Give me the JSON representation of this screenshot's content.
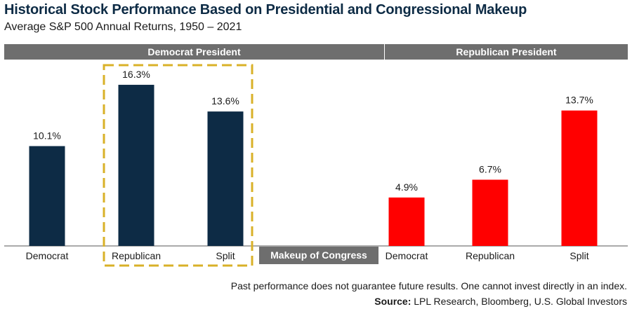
{
  "title": "Historical Stock Performance Based on Presidential and Congressional Makeup",
  "subtitle": "Average S&P 500 Annual Returns, 1950 – 2021",
  "groups": [
    {
      "label": "Democrat President"
    },
    {
      "label": "Republican President"
    }
  ],
  "congress_label": "Makeup of Congress",
  "footnote": "Past performance does not guarantee future results. One cannot invest directly in an index.",
  "source_label": "Source:",
  "source_text": " LPL Research, Bloomberg, U.S. Global Investors",
  "colors": {
    "democrat_bar": "#0d2b45",
    "republican_bar": "#ff0000",
    "band": "#6e6e6e",
    "highlight": "#d9b128"
  },
  "chart_data": {
    "type": "bar",
    "unit": "%",
    "ylim": [
      0,
      18.5
    ],
    "categories": [
      "Democrat",
      "Republican",
      "Split",
      "Democrat",
      "Republican",
      "Split"
    ],
    "bars": [
      {
        "group": "Democrat President",
        "category": "Democrat",
        "value": 10.1,
        "label": "10.1%"
      },
      {
        "group": "Democrat President",
        "category": "Republican",
        "value": 16.3,
        "label": "16.3%"
      },
      {
        "group": "Democrat President",
        "category": "Split",
        "value": 13.6,
        "label": "13.6%"
      },
      {
        "group": "Republican President",
        "category": "Democrat",
        "value": 4.9,
        "label": "4.9%"
      },
      {
        "group": "Republican President",
        "category": "Republican",
        "value": 6.7,
        "label": "6.7%"
      },
      {
        "group": "Republican President",
        "category": "Split",
        "value": 13.7,
        "label": "13.7%"
      }
    ],
    "highlighted_categories": [
      "Republican",
      "Split"
    ],
    "highlighted_group": "Democrat President"
  }
}
